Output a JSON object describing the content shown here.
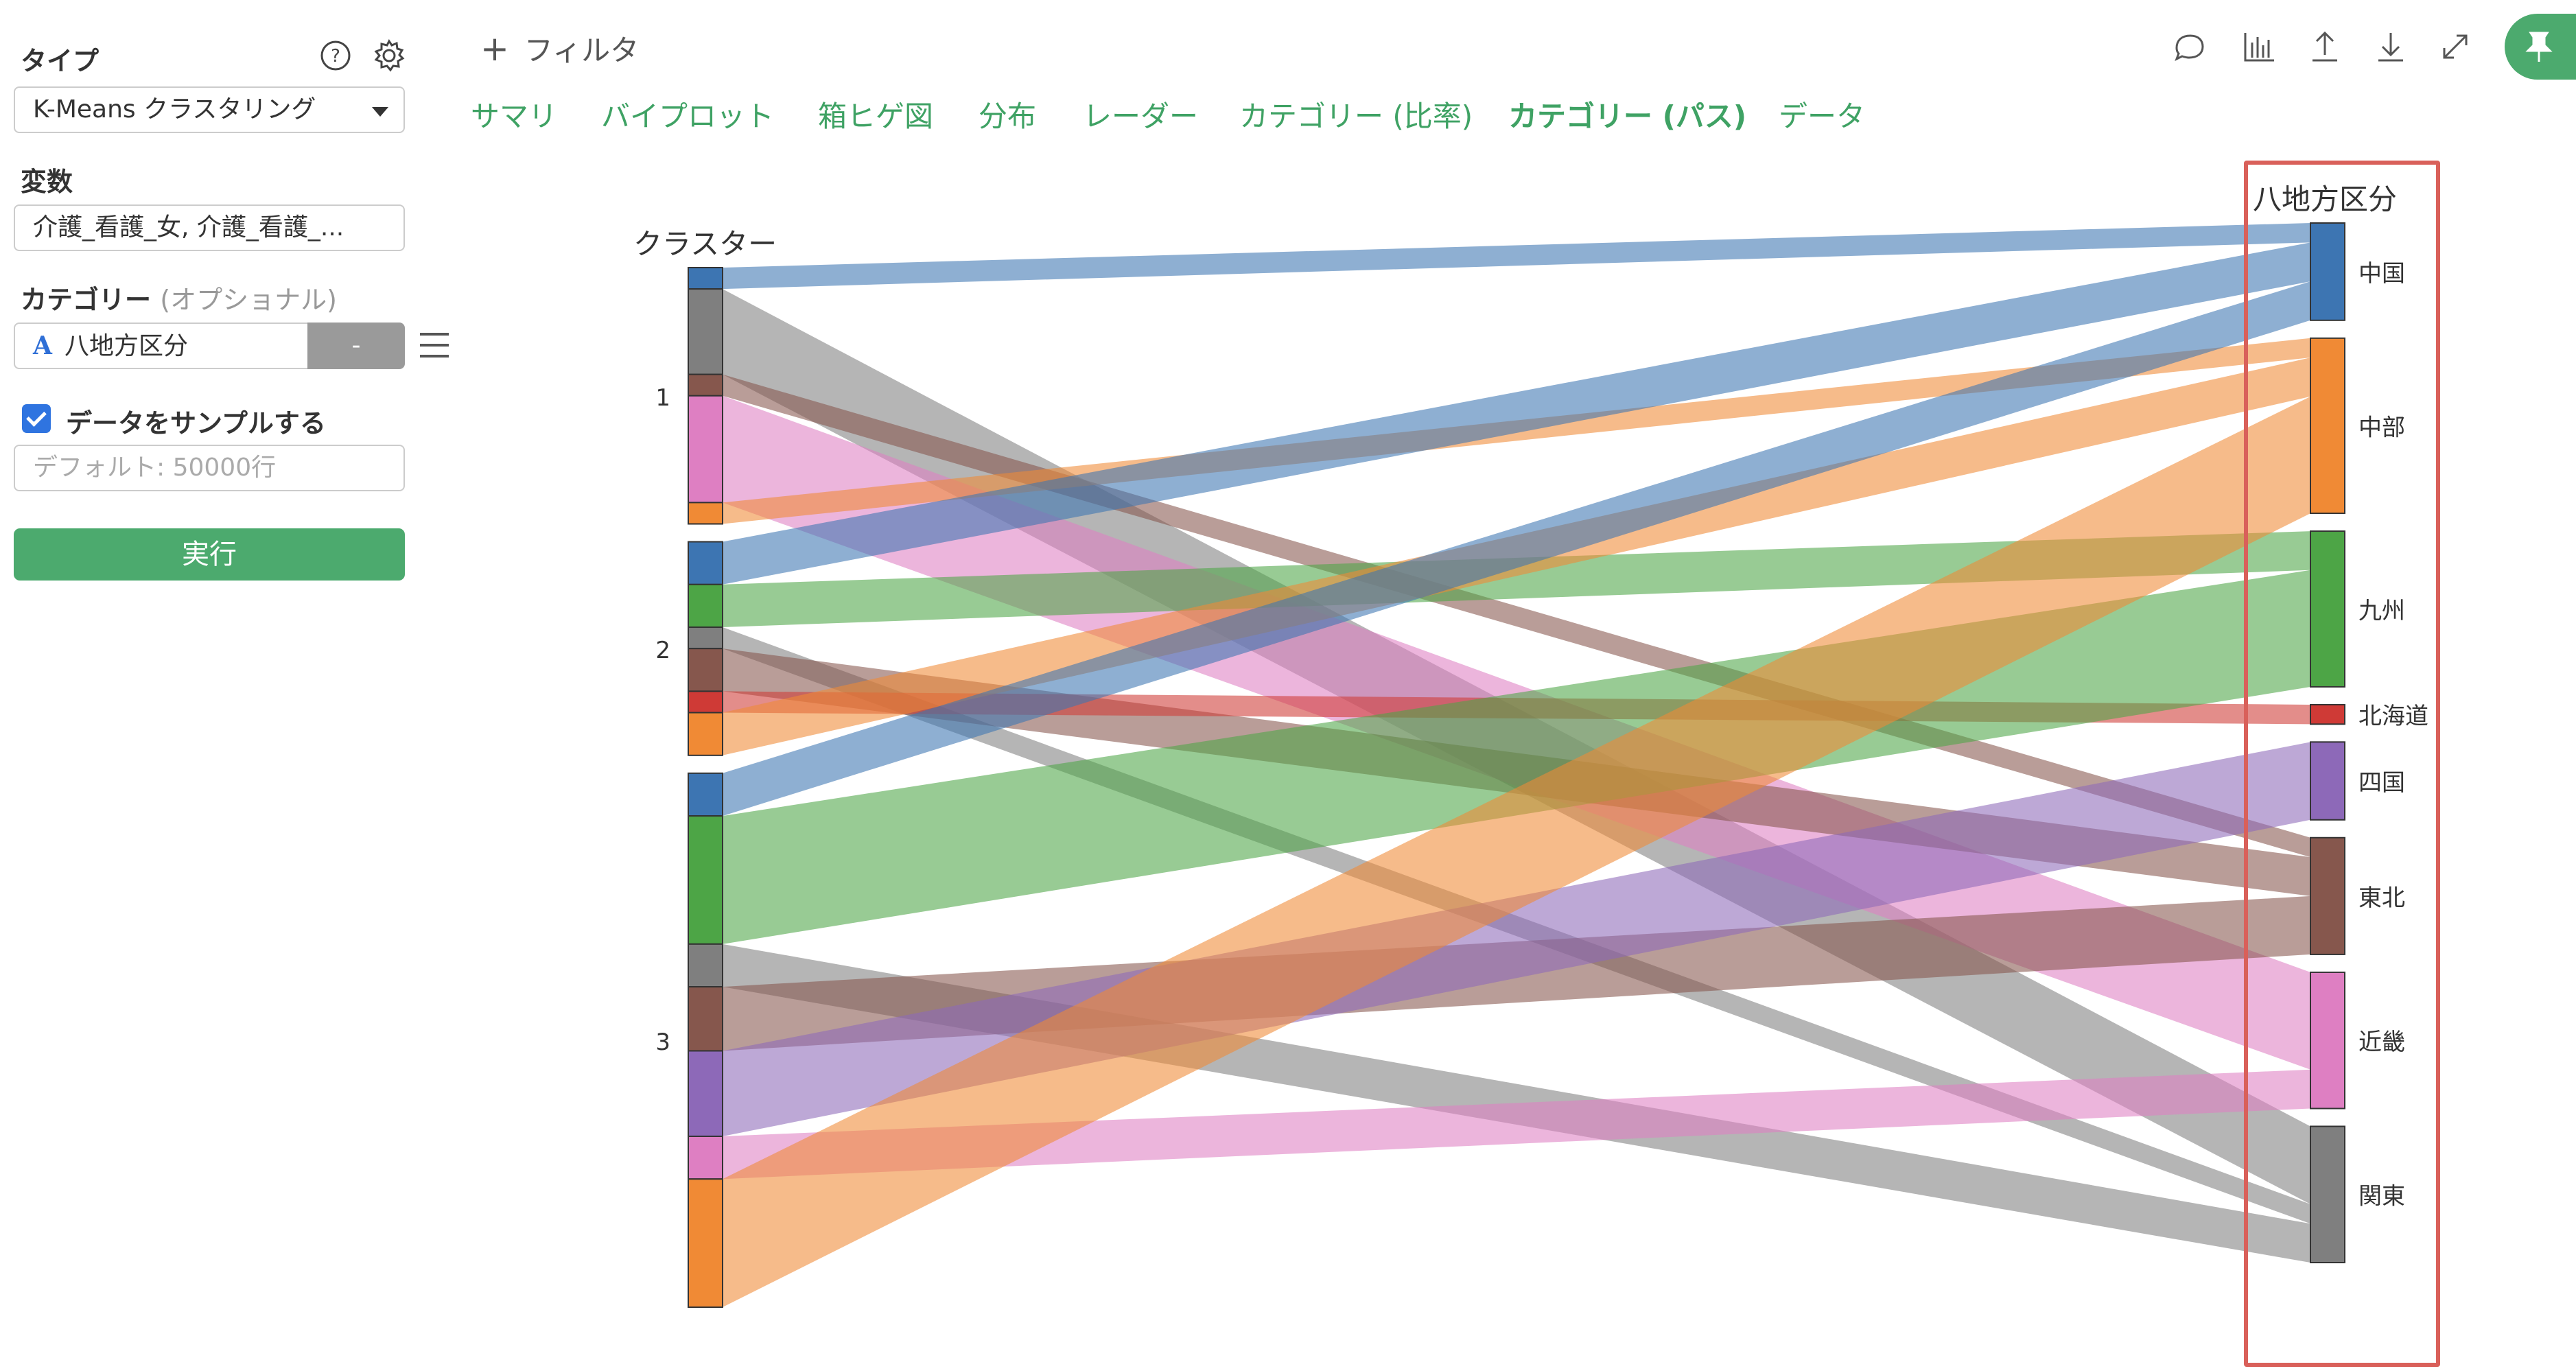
{
  "sidebar": {
    "type_label": "タイプ",
    "type_value": "K-Means クラスタリング",
    "variables_label": "変数",
    "variables_value": "介護_看護_女, 介護_看護_...",
    "category_label": "カテゴリー",
    "category_optional": "(オプショナル)",
    "category_type_icon": "A",
    "category_value": "八地方区分",
    "category_remove_label": "-",
    "sample_checkbox_label": "データをサンプルする",
    "sample_checked": true,
    "sample_placeholder": "デフォルト: 50000行",
    "run_label": "実行"
  },
  "toolbar": {
    "filter_label": "フィルタ",
    "icons": [
      "comment-icon",
      "chart-icon",
      "upload-icon",
      "download-icon",
      "expand-icon",
      "pin-icon"
    ]
  },
  "tabs": [
    {
      "label": "サマリ",
      "active": false
    },
    {
      "label": "バイプロット",
      "active": false
    },
    {
      "label": "箱ヒゲ図",
      "active": false
    },
    {
      "label": "分布",
      "active": false
    },
    {
      "label": "レーダー",
      "active": false
    },
    {
      "label": "カテゴリー (比率)",
      "active": false
    },
    {
      "label": "カテゴリー (パス)",
      "active": true
    },
    {
      "label": "データ",
      "active": false
    }
  ],
  "colors": {
    "accent": "#4caa6e",
    "highlight": "#d9605a",
    "checkbox": "#2f74e0"
  },
  "chart_data": {
    "type": "parallel_sets",
    "left_axis_title": "クラスター",
    "right_axis_title": "八地方区分",
    "clusters": [
      "1",
      "2",
      "3"
    ],
    "regions": [
      {
        "name": "中国",
        "color": "#3d75b2"
      },
      {
        "name": "中部",
        "color": "#f08a35"
      },
      {
        "name": "九州",
        "color": "#4da546"
      },
      {
        "name": "北海道",
        "color": "#cf3a36"
      },
      {
        "name": "四国",
        "color": "#8d69b8"
      },
      {
        "name": "東北",
        "color": "#86574d"
      },
      {
        "name": "近畿",
        "color": "#de7fc2"
      },
      {
        "name": "関東",
        "color": "#7f7f7f"
      }
    ],
    "flows": [
      {
        "cluster": "1",
        "region": "中国",
        "value": 1
      },
      {
        "cluster": "1",
        "region": "関東",
        "value": 4
      },
      {
        "cluster": "1",
        "region": "東北",
        "value": 1
      },
      {
        "cluster": "1",
        "region": "近畿",
        "value": 5
      },
      {
        "cluster": "1",
        "region": "中部",
        "value": 1
      },
      {
        "cluster": "2",
        "region": "中国",
        "value": 2
      },
      {
        "cluster": "2",
        "region": "九州",
        "value": 2
      },
      {
        "cluster": "2",
        "region": "関東",
        "value": 1
      },
      {
        "cluster": "2",
        "region": "東北",
        "value": 2
      },
      {
        "cluster": "2",
        "region": "北海道",
        "value": 1
      },
      {
        "cluster": "2",
        "region": "中部",
        "value": 2
      },
      {
        "cluster": "3",
        "region": "中国",
        "value": 2
      },
      {
        "cluster": "3",
        "region": "九州",
        "value": 6
      },
      {
        "cluster": "3",
        "region": "関東",
        "value": 2
      },
      {
        "cluster": "3",
        "region": "東北",
        "value": 3
      },
      {
        "cluster": "3",
        "region": "四国",
        "value": 4
      },
      {
        "cluster": "3",
        "region": "近畿",
        "value": 2
      },
      {
        "cluster": "3",
        "region": "中部",
        "value": 6
      }
    ]
  }
}
